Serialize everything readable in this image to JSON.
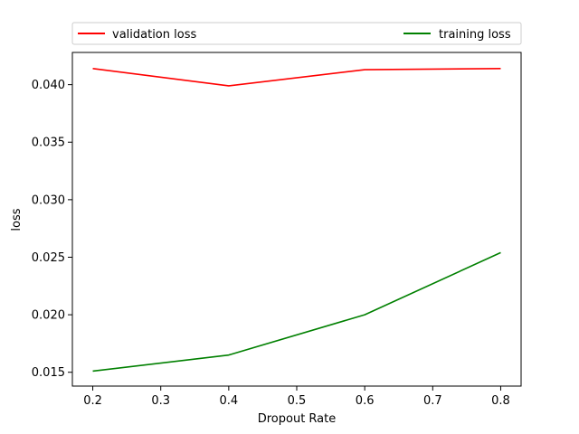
{
  "chart_data": {
    "type": "line",
    "title": "",
    "xlabel": "Dropout Rate",
    "ylabel": "loss",
    "x": [
      0.2,
      0.4,
      0.6,
      0.8
    ],
    "xlim": [
      0.17,
      0.83
    ],
    "ylim": [
      0.0138,
      0.0428
    ],
    "xticks": [
      0.2,
      0.3,
      0.4,
      0.5,
      0.6,
      0.7,
      0.8
    ],
    "xtick_labels": [
      "0.2",
      "0.3",
      "0.4",
      "0.5",
      "0.6",
      "0.7",
      "0.8"
    ],
    "yticks": [
      0.015,
      0.02,
      0.025,
      0.03,
      0.035,
      0.04
    ],
    "ytick_labels": [
      "0.015",
      "0.020",
      "0.025",
      "0.030",
      "0.035",
      "0.040"
    ],
    "grid": false,
    "legend_position": "top",
    "series": [
      {
        "name": "validation loss",
        "color": "#ff0000",
        "values": [
          0.0414,
          0.0399,
          0.0413,
          0.0414
        ]
      },
      {
        "name": "training loss",
        "color": "#008000",
        "values": [
          0.0151,
          0.0165,
          0.02,
          0.0254
        ]
      }
    ]
  }
}
